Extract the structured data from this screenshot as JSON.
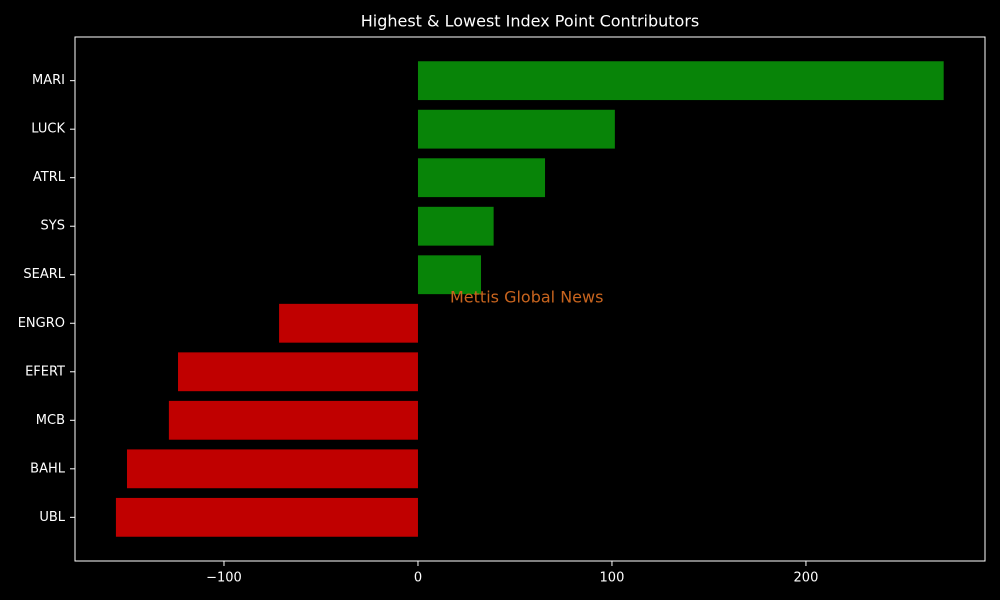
{
  "chart_data": {
    "type": "barh",
    "title": "Highest & Lowest Index Point Contributors",
    "watermark": "Mettis Global News",
    "watermark_color": "#c8641e",
    "categories": [
      "MARI",
      "LUCK",
      "ATRL",
      "SYS",
      "SEARL",
      "ENGRO",
      "EFERT",
      "MCB",
      "BAHL",
      "UBL"
    ],
    "values": [
      271,
      101.5,
      65.5,
      39,
      32.5,
      -71.6,
      -123.7,
      -128.4,
      -150,
      -155.7
    ],
    "colors": [
      "#088408",
      "#088408",
      "#088408",
      "#088408",
      "#088408",
      "#c00000",
      "#c00000",
      "#c00000",
      "#c00000",
      "#c00000"
    ],
    "xlim": [
      -176.8,
      292.3
    ],
    "xticks": [
      {
        "value": -100,
        "label": "−100"
      },
      0,
      100,
      200
    ]
  }
}
